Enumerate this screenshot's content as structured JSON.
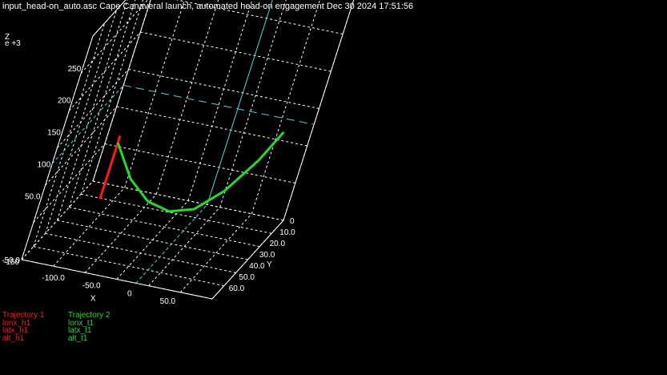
{
  "header": {
    "title": "input_head-on_auto.asc  Cape Canaveral launch, automated head-on engagement Dec 30 2024 17:51:56"
  },
  "colors": {
    "background": "#000000",
    "axes": "#ffffff",
    "grid": "#ffffff",
    "reference_lines": "#4fd6e0",
    "trajectory_1": "#ff1a1a",
    "trajectory_2": "#22dd22"
  },
  "chart_data": {
    "type": "line3d",
    "title": "",
    "axes": {
      "x": {
        "label": "X",
        "range": [
          -150,
          100
        ],
        "tick_labels": [
          "-100.0",
          "-50.0",
          "0",
          "50.0"
        ],
        "tick_values": [
          -100,
          -50,
          0,
          50
        ]
      },
      "y": {
        "label": "Y",
        "range": [
          0,
          70
        ],
        "tick_labels": [
          "0",
          "10.0",
          "20.0",
          "30.0",
          "40.0",
          "50.0",
          "60.0"
        ],
        "tick_values": [
          0,
          10,
          20,
          30,
          40,
          50,
          60
        ]
      },
      "z": {
        "label": "Z",
        "scale_label": "e +3",
        "range": [
          -50,
          300
        ],
        "tick_labels": [
          "-50.0",
          "50.0",
          "100",
          "150",
          "200",
          "250"
        ],
        "tick_values": [
          -50,
          50,
          100,
          150,
          200,
          250
        ],
        "corner_label": "-150"
      }
    },
    "grid": true,
    "legend_position": "bottom-left",
    "series": [
      {
        "name": "Trajectory 1",
        "components": [
          "lonx_h1",
          "latx_h1",
          "alt_h1"
        ],
        "color": "#ff1a1a",
        "x": [
          -120,
          -120,
          -120,
          -120,
          -120
        ],
        "y": [
          0,
          0,
          0,
          0,
          0
        ],
        "z": [
          0,
          50,
          100,
          150,
          180
        ]
      },
      {
        "name": "Trajectory 2",
        "components": [
          "lonx_t1",
          "latx_t1",
          "alt_t1"
        ],
        "color": "#22dd22",
        "x": [
          -120,
          -90,
          -60,
          -30,
          0,
          30,
          60,
          80
        ],
        "y": [
          0,
          0,
          0,
          0,
          0,
          0,
          0,
          0
        ],
        "z": [
          160,
          70,
          20,
          5,
          25,
          90,
          190,
          280
        ]
      }
    ],
    "reference_lines": [
      {
        "axis": "x",
        "value": 0,
        "plane": "floor"
      },
      {
        "axis": "z",
        "value": 100,
        "plane": "back"
      }
    ]
  }
}
